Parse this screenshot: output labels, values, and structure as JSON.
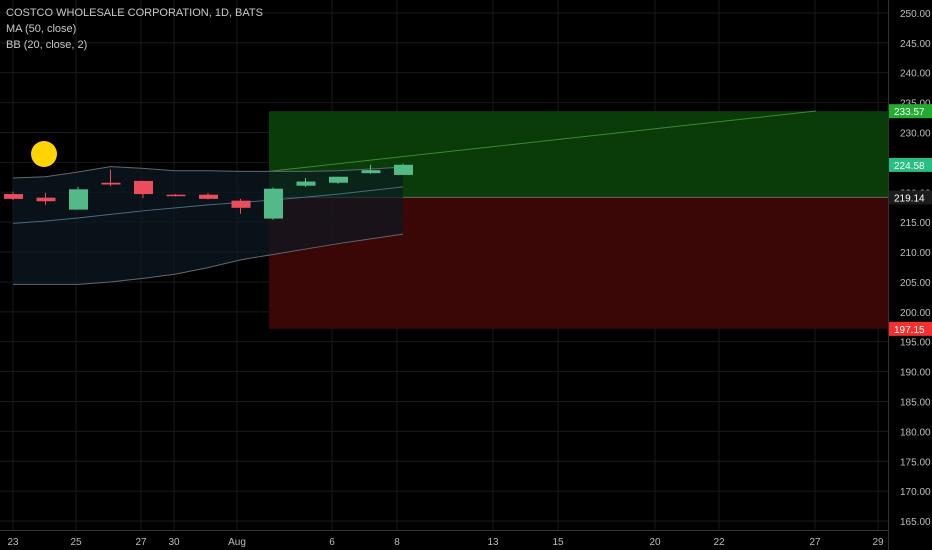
{
  "chart_data": {
    "type": "candlestick",
    "symbol_title": "COSTCO WHOLESALE CORPORATION, 1D, BATS",
    "indicators": [
      "MA (50, close)",
      "BB (20, close, 2)"
    ],
    "x_tick_labels": [
      "23",
      "25",
      "27",
      "30",
      "Aug",
      "6",
      "8",
      "13",
      "15",
      "20",
      "22",
      "27",
      "29"
    ],
    "y_ticks": [
      "165.00",
      "170.00",
      "175.00",
      "180.00",
      "185.00",
      "190.00",
      "195.00",
      "200.00",
      "205.00",
      "210.00",
      "215.00",
      "220.00",
      "225.00",
      "230.00",
      "235.00",
      "240.00",
      "245.00",
      "250.00"
    ],
    "ylim": [
      163.5,
      251.5
    ],
    "candles": [
      {
        "o": 219.7,
        "h": 220.1,
        "l": 218.7,
        "c": 218.9
      },
      {
        "o": 219.1,
        "h": 219.9,
        "l": 217.9,
        "c": 218.5
      },
      {
        "o": 217.1,
        "h": 220.9,
        "l": 217.1,
        "c": 220.5
      },
      {
        "o": 221.6,
        "h": 223.8,
        "l": 221.0,
        "c": 221.3
      },
      {
        "o": 221.9,
        "h": 221.9,
        "l": 219.0,
        "c": 219.7
      },
      {
        "o": 219.6,
        "h": 219.7,
        "l": 219.3,
        "c": 219.5
      },
      {
        "o": 219.6,
        "h": 219.9,
        "l": 218.8,
        "c": 218.9
      },
      {
        "o": 218.6,
        "h": 218.9,
        "l": 216.4,
        "c": 217.4
      },
      {
        "o": 215.6,
        "h": 220.8,
        "l": 215.4,
        "c": 220.6
      },
      {
        "o": 221.1,
        "h": 222.4,
        "l": 220.9,
        "c": 221.8
      },
      {
        "o": 221.6,
        "h": 222.6,
        "l": 221.4,
        "c": 222.6
      },
      {
        "o": 223.2,
        "h": 224.6,
        "l": 223.1,
        "c": 223.7
      },
      {
        "o": 222.9,
        "h": 224.8,
        "l": 222.9,
        "c": 224.6
      }
    ],
    "upper_band": [
      222.4,
      222.6,
      223.4,
      224.3,
      224.0,
      223.6,
      223.6,
      223.5,
      223.5,
      223.5,
      223.6,
      223.9,
      224.2
    ],
    "lower_band": [
      204.6,
      204.6,
      204.6,
      205.0,
      205.6,
      206.3,
      207.4,
      208.7,
      209.6,
      210.5,
      211.4,
      212.2,
      213.0
    ],
    "ma50": [
      214.8,
      215.2,
      215.7,
      216.3,
      216.9,
      217.4,
      217.9,
      218.3,
      218.7,
      219.2,
      219.7,
      220.3,
      220.9
    ],
    "last_price_label": "224.58",
    "entry_price": 219.14,
    "entry_label": "219.14",
    "target_price": 233.57,
    "target_label": "233.57",
    "stop_price": 197.15,
    "stop_label": "197.15",
    "projection_end_price": 233.6,
    "colors": {
      "up": "#53b987",
      "down": "#eb4d5c",
      "profit_zone": "#0a3f0a",
      "loss_zone": "#3d0606",
      "target_tag": "#22ab2e",
      "stop_tag": "#f23030",
      "price_tag": "#27c081",
      "entry_tag": "#1c1c1c",
      "marker": "#ffd400",
      "grid": "#1a1a1a",
      "axis_text": "#bdbdbd"
    }
  }
}
